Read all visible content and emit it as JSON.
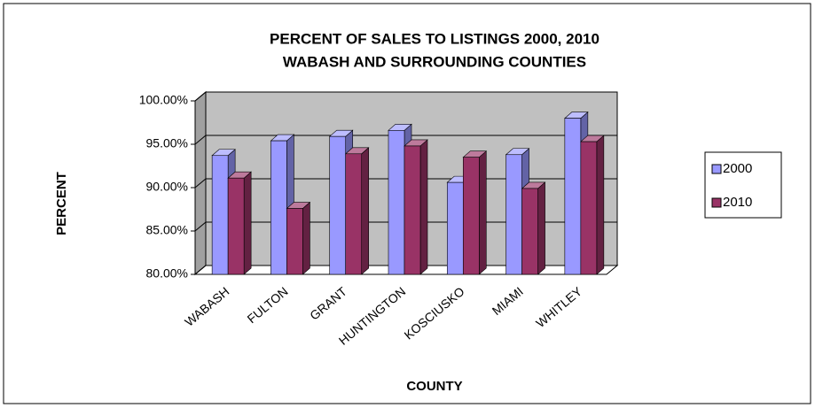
{
  "chart_data": {
    "type": "bar3d",
    "title": [
      "PERCENT OF SALES TO LISTINGS 2000, 2010",
      "WABASH AND SURROUNDING COUNTIES"
    ],
    "xlabel": "COUNTY",
    "ylabel": "PERCENT",
    "categories": [
      "WABASH",
      "FULTON",
      "GRANT",
      "HUNTINGTON",
      "KOSCIUSKO",
      "MIAMI",
      "WHITLEY"
    ],
    "series": [
      {
        "name": "2000",
        "color": "#9999ff",
        "values": [
          93.7,
          95.4,
          95.9,
          96.6,
          90.6,
          93.8,
          98.0
        ]
      },
      {
        "name": "2010",
        "color": "#993366",
        "values": [
          91.1,
          87.6,
          93.9,
          94.8,
          93.5,
          89.9,
          95.3
        ]
      }
    ],
    "ylim": [
      80,
      100
    ],
    "yticks": [
      {
        "value": 80,
        "label": "80.00%"
      },
      {
        "value": 85,
        "label": "85.00%"
      },
      {
        "value": 90,
        "label": "90.00%"
      },
      {
        "value": 95,
        "label": "95.00%"
      },
      {
        "value": 100,
        "label": "100.00%"
      }
    ],
    "grid": true,
    "legend": "right"
  }
}
